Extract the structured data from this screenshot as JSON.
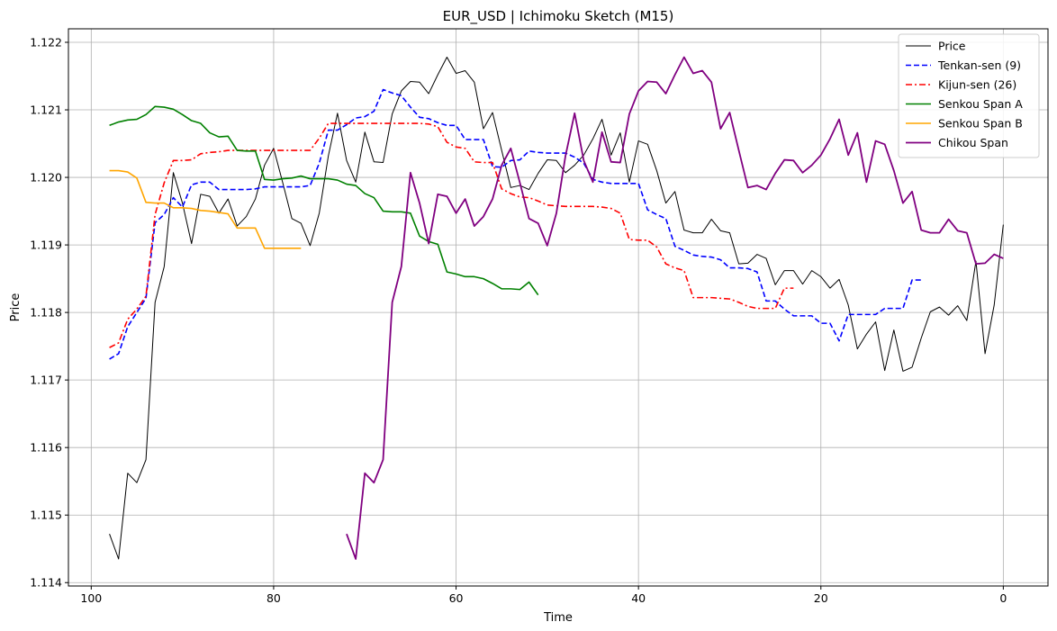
{
  "chart_data": {
    "type": "line",
    "title": "EUR_USD | Ichimoku Sketch (M15)",
    "xlabel": "Time",
    "ylabel": "Price",
    "x_inverted": true,
    "xlim": [
      102.5,
      -4.9
    ],
    "ylim": [
      1.11395,
      1.1222
    ],
    "x_ticks": [
      100,
      80,
      60,
      40,
      20,
      0
    ],
    "y_ticks": [
      1.114,
      1.115,
      1.116,
      1.117,
      1.118,
      1.119,
      1.12,
      1.121,
      1.122
    ],
    "y_tick_labels": [
      "1.114",
      "1.115",
      "1.116",
      "1.117",
      "1.118",
      "1.119",
      "1.120",
      "1.121",
      "1.122"
    ],
    "grid": true,
    "legend_position": "top-right",
    "series": [
      {
        "name": "Price",
        "color": "#000000",
        "style": "solid",
        "width": 1.0,
        "x_start": 98,
        "x_step": -1,
        "values": [
          1.11472,
          1.11435,
          1.11562,
          1.11548,
          1.11582,
          1.11815,
          1.11868,
          1.12007,
          1.11962,
          1.11902,
          1.11975,
          1.11972,
          1.11947,
          1.11968,
          1.11928,
          1.11942,
          1.11968,
          1.12018,
          1.12043,
          1.11992,
          1.11939,
          1.11932,
          1.11899,
          1.11947,
          1.12032,
          1.12095,
          1.12025,
          1.11993,
          1.12067,
          1.12023,
          1.12022,
          1.12094,
          1.12128,
          1.12142,
          1.12141,
          1.12124,
          1.12152,
          1.12178,
          1.12154,
          1.12158,
          1.12141,
          1.12072,
          1.12096,
          1.1204,
          1.11985,
          1.11988,
          1.11982,
          1.12006,
          1.12026,
          1.12025,
          1.12007,
          1.12018,
          1.12033,
          1.12057,
          1.12086,
          1.12033,
          1.12066,
          1.11993,
          1.12054,
          1.12049,
          1.1201,
          1.11962,
          1.11979,
          1.11922,
          1.11918,
          1.11918,
          1.11938,
          1.11921,
          1.11918,
          1.11872,
          1.11873,
          1.11886,
          1.1188,
          1.11841,
          1.11862,
          1.11862,
          1.11842,
          1.11862,
          1.11853,
          1.11836,
          1.11849,
          1.11811,
          1.11746,
          1.11768,
          1.11786,
          1.11714,
          1.11774,
          1.11713,
          1.11719,
          1.11762,
          1.11801,
          1.11808,
          1.11796,
          1.1181,
          1.11788,
          1.11876,
          1.11739,
          1.11811,
          1.1193
        ]
      },
      {
        "name": "Tenkan-sen (9)",
        "color": "#0000ff",
        "style": "dashed",
        "width": 1.6,
        "x_start": 98,
        "x_step": -1,
        "values": [
          1.11731,
          1.11739,
          1.11779,
          1.118,
          1.11821,
          1.11933,
          1.11945,
          1.1197,
          1.11956,
          1.11989,
          1.11993,
          1.11993,
          1.11982,
          1.11982,
          1.11982,
          1.11982,
          1.11983,
          1.11986,
          1.11986,
          1.11986,
          1.11986,
          1.11986,
          1.11988,
          1.12021,
          1.1207,
          1.1207,
          1.12078,
          1.12088,
          1.1209,
          1.12098,
          1.1213,
          1.12125,
          1.12121,
          1.12104,
          1.12089,
          1.12087,
          1.12081,
          1.12077,
          1.12077,
          1.12056,
          1.12056,
          1.12056,
          1.12016,
          1.12015,
          1.12025,
          1.12026,
          1.12039,
          1.12037,
          1.12036,
          1.12036,
          1.12036,
          1.1203,
          1.12021,
          1.11997,
          1.11993,
          1.11991,
          1.11991,
          1.11991,
          1.11991,
          1.11952,
          1.11945,
          1.11939,
          1.11898,
          1.11892,
          1.11885,
          1.11883,
          1.11882,
          1.11878,
          1.11866,
          1.11866,
          1.11865,
          1.1186,
          1.11817,
          1.11817,
          1.11805,
          1.11795,
          1.11795,
          1.11795,
          1.11784,
          1.11784,
          1.11758,
          1.11797,
          1.11797,
          1.11797,
          1.11797,
          1.11806,
          1.11806,
          1.11806,
          1.11848,
          1.11848
        ]
      },
      {
        "name": "Kijun-sen (26)",
        "color": "#ff0000",
        "style": "dashdot",
        "width": 1.6,
        "x_start": 98,
        "x_step": -1,
        "values": [
          1.11748,
          1.11755,
          1.1179,
          1.11805,
          1.11824,
          1.11945,
          1.11992,
          1.12025,
          1.12025,
          1.12026,
          1.12035,
          1.12037,
          1.12038,
          1.1204,
          1.1204,
          1.1204,
          1.1204,
          1.1204,
          1.1204,
          1.1204,
          1.1204,
          1.1204,
          1.1204,
          1.12058,
          1.1208,
          1.1208,
          1.1208,
          1.1208,
          1.1208,
          1.1208,
          1.1208,
          1.1208,
          1.1208,
          1.1208,
          1.1208,
          1.12079,
          1.12075,
          1.12052,
          1.12045,
          1.12043,
          1.12023,
          1.12022,
          1.12022,
          1.11983,
          1.11976,
          1.11971,
          1.1197,
          1.11965,
          1.11959,
          1.11958,
          1.11957,
          1.11957,
          1.11957,
          1.11957,
          1.11956,
          1.11954,
          1.11947,
          1.11908,
          1.11907,
          1.11907,
          1.11897,
          1.11872,
          1.11866,
          1.11862,
          1.11822,
          1.11822,
          1.11822,
          1.11821,
          1.1182,
          1.11815,
          1.11809,
          1.11806,
          1.11806,
          1.11806,
          1.11836,
          1.11836
        ]
      },
      {
        "name": "Senkou Span A",
        "color": "#008000",
        "style": "solid",
        "width": 1.6,
        "x_start": 98,
        "x_step": -1,
        "values": [
          1.12077,
          1.12082,
          1.12085,
          1.12086,
          1.12093,
          1.12105,
          1.12104,
          1.12101,
          1.12093,
          1.12084,
          1.1208,
          1.12066,
          1.1206,
          1.12061,
          1.1204,
          1.12039,
          1.12039,
          1.11997,
          1.11996,
          1.11998,
          1.11999,
          1.12002,
          1.11998,
          1.11998,
          1.11998,
          1.11996,
          1.1199,
          1.11988,
          1.11976,
          1.1197,
          1.1195,
          1.11949,
          1.11949,
          1.11947,
          1.11913,
          1.11905,
          1.11901,
          1.1186,
          1.11857,
          1.11853,
          1.11853,
          1.1185,
          1.11843,
          1.11835,
          1.11835,
          1.11834,
          1.11845,
          1.11826
        ]
      },
      {
        "name": "Senkou Span B",
        "color": "#ffa500",
        "style": "solid",
        "width": 1.6,
        "x_start": 98,
        "x_step": -1,
        "values": [
          1.1201,
          1.1201,
          1.12008,
          1.11999,
          1.11963,
          1.11962,
          1.11962,
          1.11955,
          1.11955,
          1.11954,
          1.11951,
          1.1195,
          1.11948,
          1.11946,
          1.11925,
          1.11925,
          1.11925,
          1.11895,
          1.11895,
          1.11895,
          1.11895,
          1.11895
        ]
      },
      {
        "name": "Chikou Span",
        "color": "#800080",
        "style": "solid",
        "width": 1.8,
        "x_start": 72,
        "x_step": -1,
        "values": [
          1.11472,
          1.11435,
          1.11562,
          1.11548,
          1.11582,
          1.11815,
          1.11868,
          1.12007,
          1.11962,
          1.11902,
          1.11975,
          1.11972,
          1.11947,
          1.11968,
          1.11928,
          1.11942,
          1.11968,
          1.12018,
          1.12043,
          1.11992,
          1.11939,
          1.11932,
          1.11899,
          1.11947,
          1.12032,
          1.12095,
          1.12025,
          1.11993,
          1.12067,
          1.12023,
          1.12022,
          1.12094,
          1.12128,
          1.12142,
          1.12141,
          1.12124,
          1.12152,
          1.12178,
          1.12154,
          1.12158,
          1.12141,
          1.12072,
          1.12096,
          1.1204,
          1.11985,
          1.11988,
          1.11982,
          1.12006,
          1.12026,
          1.12025,
          1.12007,
          1.12018,
          1.12033,
          1.12057,
          1.12086,
          1.12033,
          1.12066,
          1.11993,
          1.12054,
          1.12049,
          1.1201,
          1.11962,
          1.11979,
          1.11922,
          1.11918,
          1.11918,
          1.11938,
          1.11921,
          1.11918,
          1.11872,
          1.11873,
          1.11886,
          1.1188
        ]
      }
    ]
  }
}
